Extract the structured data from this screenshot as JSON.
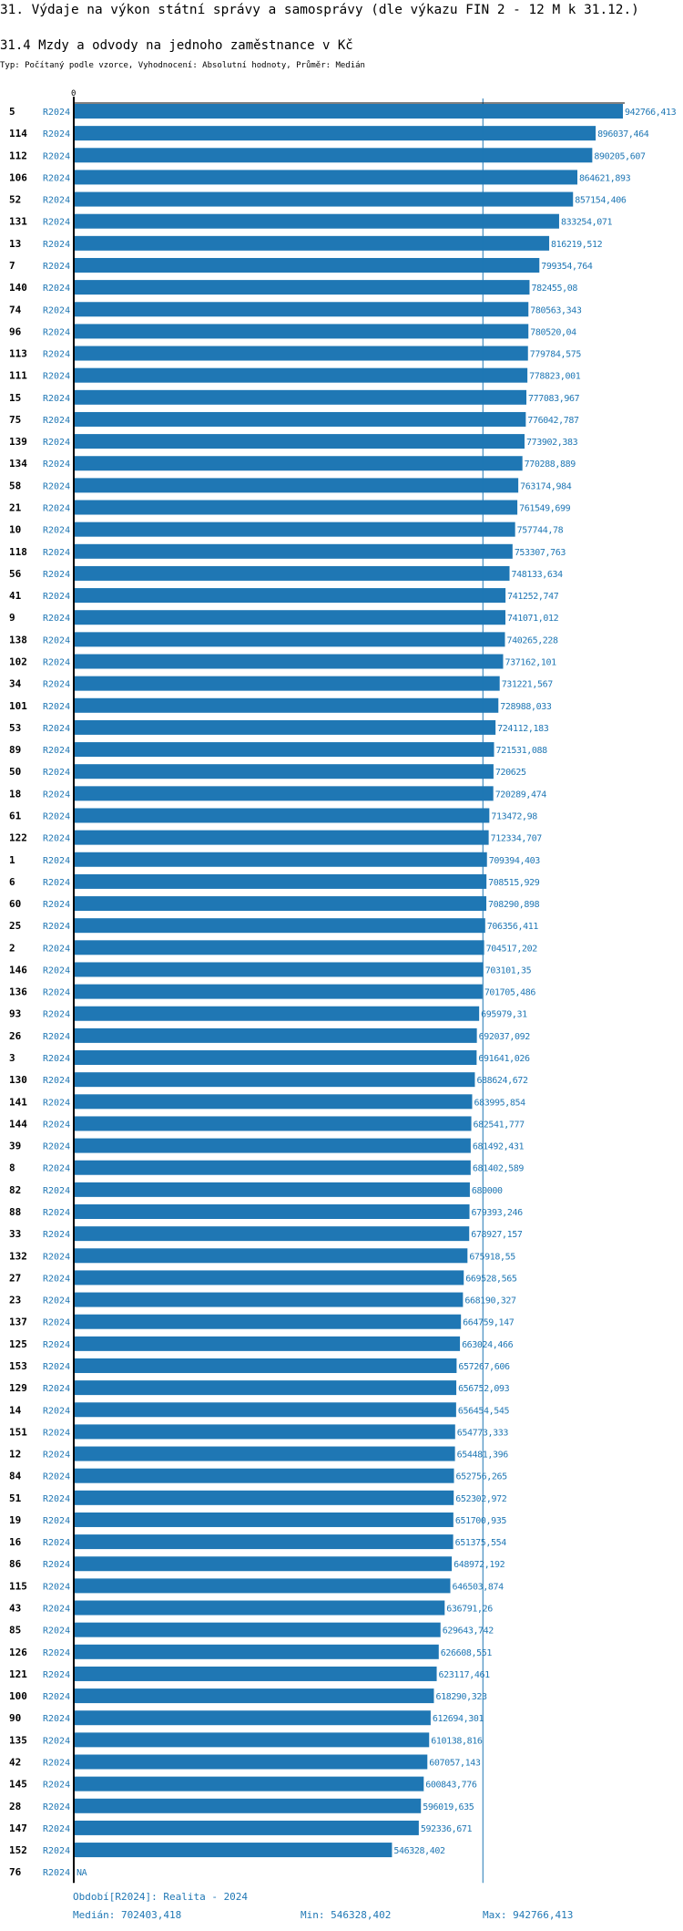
{
  "header": {
    "title": "31. Výdaje na výkon státní správy a samosprávy (dle výkazu FIN 2 - 12 M k 31.12.)",
    "subtitle": "31.4 Mzdy a odvody na jednoho zaměstnance v Kč",
    "typ": "Typ: Počítaný podle vzorce, Vyhodnocení: Absolutní hodnoty, Průměr: Medián"
  },
  "chart_data": {
    "type": "bar",
    "orientation": "horizontal",
    "axis_zero_label": "0",
    "xlim": [
      0,
      942766.413
    ],
    "bar_color": "#1f77b4",
    "median_line": 702403.418,
    "series_label": "R2024",
    "rows": [
      {
        "id": "5",
        "value": 942766.413,
        "label": "942766,413"
      },
      {
        "id": "114",
        "value": 896037.464,
        "label": "896037,464"
      },
      {
        "id": "112",
        "value": 890205.607,
        "label": "890205,607"
      },
      {
        "id": "106",
        "value": 864621.893,
        "label": "864621,893"
      },
      {
        "id": "52",
        "value": 857154.406,
        "label": "857154,406"
      },
      {
        "id": "131",
        "value": 833254.071,
        "label": "833254,071"
      },
      {
        "id": "13",
        "value": 816219.512,
        "label": "816219,512"
      },
      {
        "id": "7",
        "value": 799354.764,
        "label": "799354,764"
      },
      {
        "id": "140",
        "value": 782455.08,
        "label": "782455,08"
      },
      {
        "id": "74",
        "value": 780563.343,
        "label": "780563,343"
      },
      {
        "id": "96",
        "value": 780520.04,
        "label": "780520,04"
      },
      {
        "id": "113",
        "value": 779784.575,
        "label": "779784,575"
      },
      {
        "id": "111",
        "value": 778823.001,
        "label": "778823,001"
      },
      {
        "id": "15",
        "value": 777083.967,
        "label": "777083,967"
      },
      {
        "id": "75",
        "value": 776042.787,
        "label": "776042,787"
      },
      {
        "id": "139",
        "value": 773902.383,
        "label": "773902,383"
      },
      {
        "id": "134",
        "value": 770288.889,
        "label": "770288,889"
      },
      {
        "id": "58",
        "value": 763174.984,
        "label": "763174,984"
      },
      {
        "id": "21",
        "value": 761549.699,
        "label": "761549,699"
      },
      {
        "id": "10",
        "value": 757744.78,
        "label": "757744,78"
      },
      {
        "id": "118",
        "value": 753307.763,
        "label": "753307,763"
      },
      {
        "id": "56",
        "value": 748133.634,
        "label": "748133,634"
      },
      {
        "id": "41",
        "value": 741252.747,
        "label": "741252,747"
      },
      {
        "id": "9",
        "value": 741071.012,
        "label": "741071,012"
      },
      {
        "id": "138",
        "value": 740265.228,
        "label": "740265,228"
      },
      {
        "id": "102",
        "value": 737162.101,
        "label": "737162,101"
      },
      {
        "id": "34",
        "value": 731221.567,
        "label": "731221,567"
      },
      {
        "id": "101",
        "value": 728988.033,
        "label": "728988,033"
      },
      {
        "id": "53",
        "value": 724112.183,
        "label": "724112,183"
      },
      {
        "id": "89",
        "value": 721531.088,
        "label": "721531,088"
      },
      {
        "id": "50",
        "value": 720625,
        "label": "720625"
      },
      {
        "id": "18",
        "value": 720289.474,
        "label": "720289,474"
      },
      {
        "id": "61",
        "value": 713472.98,
        "label": "713472,98"
      },
      {
        "id": "122",
        "value": 712334.707,
        "label": "712334,707"
      },
      {
        "id": "1",
        "value": 709394.403,
        "label": "709394,403"
      },
      {
        "id": "6",
        "value": 708515.929,
        "label": "708515,929"
      },
      {
        "id": "60",
        "value": 708290.898,
        "label": "708290,898"
      },
      {
        "id": "25",
        "value": 706356.411,
        "label": "706356,411"
      },
      {
        "id": "2",
        "value": 704517.202,
        "label": "704517,202"
      },
      {
        "id": "146",
        "value": 703101.35,
        "label": "703101,35"
      },
      {
        "id": "136",
        "value": 701705.486,
        "label": "701705,486"
      },
      {
        "id": "93",
        "value": 695979.31,
        "label": "695979,31"
      },
      {
        "id": "26",
        "value": 692037.092,
        "label": "692037,092"
      },
      {
        "id": "3",
        "value": 691641.026,
        "label": "691641,026"
      },
      {
        "id": "130",
        "value": 688624.672,
        "label": "688624,672"
      },
      {
        "id": "141",
        "value": 683995.854,
        "label": "683995,854"
      },
      {
        "id": "144",
        "value": 682541.777,
        "label": "682541,777"
      },
      {
        "id": "39",
        "value": 681492.431,
        "label": "681492,431"
      },
      {
        "id": "8",
        "value": 681402.589,
        "label": "681402,589"
      },
      {
        "id": "82",
        "value": 680000,
        "label": "680000"
      },
      {
        "id": "88",
        "value": 679393.246,
        "label": "679393,246"
      },
      {
        "id": "33",
        "value": 678927.157,
        "label": "678927,157"
      },
      {
        "id": "132",
        "value": 675918.55,
        "label": "675918,55"
      },
      {
        "id": "27",
        "value": 669528.565,
        "label": "669528,565"
      },
      {
        "id": "23",
        "value": 668190.327,
        "label": "668190,327"
      },
      {
        "id": "137",
        "value": 664759.147,
        "label": "664759,147"
      },
      {
        "id": "125",
        "value": 663024.466,
        "label": "663024,466"
      },
      {
        "id": "153",
        "value": 657267.606,
        "label": "657267,606"
      },
      {
        "id": "129",
        "value": 656752.093,
        "label": "656752,093"
      },
      {
        "id": "14",
        "value": 656454.545,
        "label": "656454,545"
      },
      {
        "id": "151",
        "value": 654773.333,
        "label": "654773,333"
      },
      {
        "id": "12",
        "value": 654481.396,
        "label": "654481,396"
      },
      {
        "id": "84",
        "value": 652756.265,
        "label": "652756,265"
      },
      {
        "id": "51",
        "value": 652302.972,
        "label": "652302,972"
      },
      {
        "id": "19",
        "value": 651700.935,
        "label": "651700,935"
      },
      {
        "id": "16",
        "value": 651375.554,
        "label": "651375,554"
      },
      {
        "id": "86",
        "value": 648972.192,
        "label": "648972,192"
      },
      {
        "id": "115",
        "value": 646503.874,
        "label": "646503,874"
      },
      {
        "id": "43",
        "value": 636791.26,
        "label": "636791,26"
      },
      {
        "id": "85",
        "value": 629643.742,
        "label": "629643,742"
      },
      {
        "id": "126",
        "value": 626608.551,
        "label": "626608,551"
      },
      {
        "id": "121",
        "value": 623117.461,
        "label": "623117,461"
      },
      {
        "id": "100",
        "value": 618290.323,
        "label": "618290,323"
      },
      {
        "id": "90",
        "value": 612694.301,
        "label": "612694,301"
      },
      {
        "id": "135",
        "value": 610138.816,
        "label": "610138,816"
      },
      {
        "id": "42",
        "value": 607057.143,
        "label": "607057,143"
      },
      {
        "id": "145",
        "value": 600843.776,
        "label": "600843,776"
      },
      {
        "id": "28",
        "value": 596019.635,
        "label": "596019,635"
      },
      {
        "id": "147",
        "value": 592336.671,
        "label": "592336,671"
      },
      {
        "id": "152",
        "value": 546328.402,
        "label": "546328,402"
      },
      {
        "id": "76",
        "value": null,
        "label": "NA"
      }
    ]
  },
  "footer": {
    "period": "Období[R2024]: Realita - 2024",
    "median": "Medián: 702403,418",
    "min": "Min: 546328,402",
    "max": "Max: 942766,413"
  }
}
